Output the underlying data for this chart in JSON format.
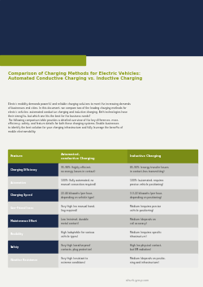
{
  "bg_color": "#f2f2ee",
  "header_bg": "#1b2a4a",
  "olive_color": "#8b9e1a",
  "olive_dark": "#7a8c16",
  "table_dark_feat": "#1b2a4a",
  "table_dark_data": "#c8c8c4",
  "table_light_feat": "#d8d8d4",
  "table_light_data": "#ebebea",
  "title_color": "#8b9e1a",
  "text_color": "#333333",
  "white": "#ffffff",
  "footer_color": "#888888",
  "title_text": "Comparison of Charging Methods for Electric Vehicles:\nAutomated Conductive Charging vs. Inductive Charging",
  "body_text": "Electric mobility demands powerful and reliable charging solutions to meet the increasing demands\nof businesses and cities. In this document, we compare two of the leading charging methods for\nelectric vehicles: automated conductive charging and inductive charging. Both technologies have\ntheir strengths, but which one fits the best for the business needs?\nThe following comparison table provides a detailed overview of the key differences, more-\nefficiency, safety, and feature details for both these charging systems. Enable businesses\nto identify the best solution for your charging infrastructure and fully leverage the benefits of\nmobile electromobility.",
  "footer_text": "schunk-group.com",
  "col_headers": [
    "Feature",
    "Automated,\nconductive Charging",
    "Inductive Charging"
  ],
  "rows": [
    {
      "feature": "Charging Efficiency",
      "conductive": "95-98% (highly efficient,\nno energy losses in contact)",
      "inductive": "85-90% (energy transfer losses\nin contact-less transmitting)",
      "style": "dark"
    },
    {
      "feature": "Automation",
      "conductive": "100% (fully automated, no\nmanual connection required)",
      "inductive": "100% (automated, requires\nprecise vehicle positioning)",
      "style": "light"
    },
    {
      "feature": "Charging Speed",
      "conductive": "22-44 kilowatts (per hour,\ndepending on vehicle type)",
      "inductive": "3.3-22 kilowatts (per hour,\ndepending on positioning)",
      "style": "dark"
    },
    {
      "feature": "User-Friendliness",
      "conductive": "Very high (no manual hand-\nling required)",
      "inductive": "Medium (requires precise\nvehicle positioning)",
      "style": "light"
    },
    {
      "feature": "Maintenance Effort",
      "conductive": "Low (minimal, durable\nmetal contact)",
      "inductive": "Medium (depends on\ncoil accuracy)",
      "style": "dark"
    },
    {
      "feature": "Flexibility",
      "conductive": "High (adaptable for various\nvehicle types)",
      "inductive": "Medium (requires specific\ninfrastructure)",
      "style": "light"
    },
    {
      "feature": "Safety",
      "conductive": "Very high (weatherproof\ncontacts, plug protection)",
      "inductive": "High (no physical contact,\nbut EM radiation)",
      "style": "dark"
    },
    {
      "feature": "Weather Resistance",
      "conductive": "Very high (resistant to\nextreme conditions)",
      "inductive": "Medium (depends on positio-\nning and infrastructure)",
      "style": "light"
    }
  ]
}
